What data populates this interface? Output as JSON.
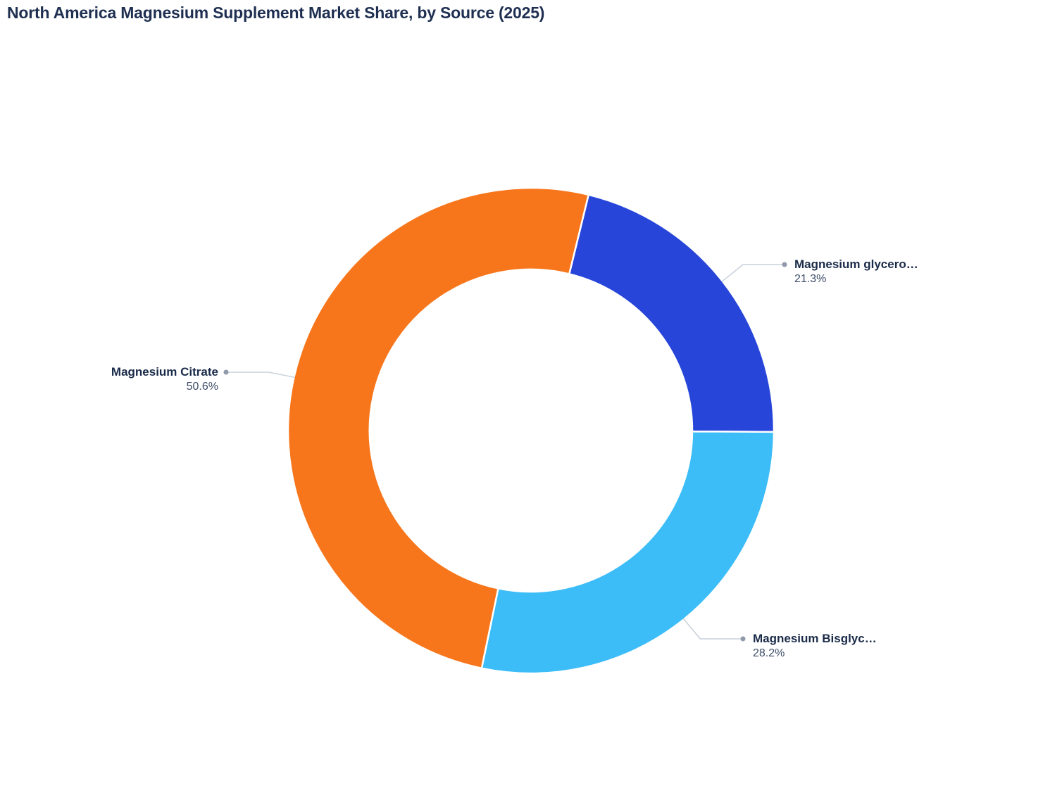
{
  "title": "North America Magnesium Supplement Market Share, by Source (2025)",
  "chart_data": {
    "type": "pie",
    "subtype": "donut",
    "title": "North America Magnesium Supplement Market Share, by Source (2025)",
    "legend_position": "none",
    "label_style": "outside-with-connectors",
    "start_angle_deg": 13.7,
    "inner_radius_ratio": 0.664,
    "slices": [
      {
        "label": "Magnesium glycero…",
        "value": 21.3,
        "value_display": "21.3%",
        "color": "#2746D9"
      },
      {
        "label": "Magnesium Bisglyc…",
        "value": 28.2,
        "value_display": "28.2%",
        "color": "#3CBDF7"
      },
      {
        "label": "Magnesium Citrate",
        "value": 50.6,
        "value_display": "50.6%",
        "color": "#F7761B"
      }
    ]
  },
  "colors": {
    "background": "#FFFFFF",
    "title_text": "#1E2F51",
    "label_text": "#1A2B49",
    "percent_text": "#3E4D68",
    "connector_line": "#C9D0DB",
    "connector_dot": "#8F99A9",
    "slice_border": "#FFFFFF"
  }
}
